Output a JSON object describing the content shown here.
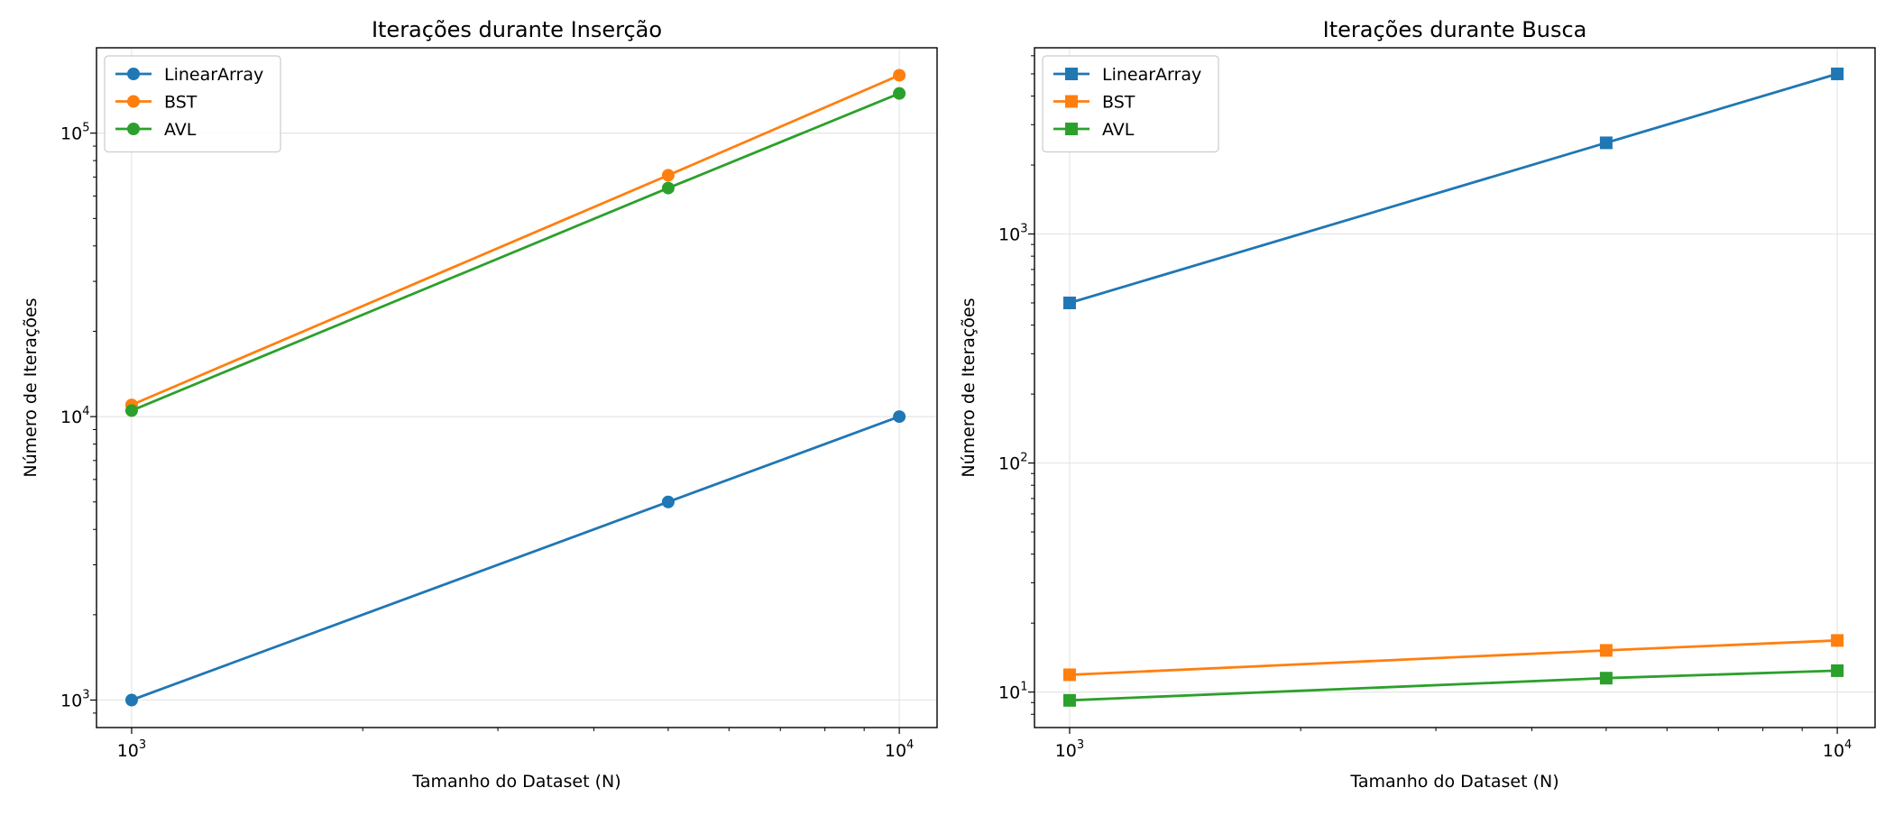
{
  "chart_data": [
    {
      "type": "line",
      "title": "Iterações durante Inserção",
      "xlabel": "Tamanho do Dataset (N)",
      "ylabel": "Número de Iterações",
      "xscale": "log",
      "yscale": "log",
      "xlim": [
        900,
        11200
      ],
      "ylim": [
        800,
        200000
      ],
      "xticks": [
        {
          "value": 1000,
          "base": "10",
          "exp": "3"
        },
        {
          "value": 10000,
          "base": "10",
          "exp": "4"
        }
      ],
      "yticks": [
        {
          "value": 1000,
          "base": "10",
          "exp": "3"
        },
        {
          "value": 10000,
          "base": "10",
          "exp": "4"
        },
        {
          "value": 100000,
          "base": "10",
          "exp": "5"
        }
      ],
      "marker": "circle",
      "grid": true,
      "legend_position": "upper-left",
      "x": [
        1000,
        5000,
        10000
      ],
      "series": [
        {
          "name": "LinearArray",
          "color": "#1f77b4",
          "values": [
            1000,
            5000,
            10000
          ]
        },
        {
          "name": "BST",
          "color": "#ff7f0e",
          "values": [
            11000,
            71000,
            160000
          ]
        },
        {
          "name": "AVL",
          "color": "#2ca02c",
          "values": [
            10500,
            64000,
            138000
          ]
        }
      ]
    },
    {
      "type": "line",
      "title": "Iterações durante Busca",
      "xlabel": "Tamanho do Dataset (N)",
      "ylabel": "Número de Iterações",
      "xscale": "log",
      "yscale": "log",
      "xlim": [
        900,
        11200
      ],
      "ylim": [
        7,
        6500
      ],
      "xticks": [
        {
          "value": 1000,
          "base": "10",
          "exp": "3"
        },
        {
          "value": 10000,
          "base": "10",
          "exp": "4"
        }
      ],
      "yticks": [
        {
          "value": 10,
          "base": "10",
          "exp": "1"
        },
        {
          "value": 100,
          "base": "10",
          "exp": "2"
        },
        {
          "value": 1000,
          "base": "10",
          "exp": "3"
        }
      ],
      "marker": "square",
      "grid": true,
      "legend_position": "upper-left",
      "x": [
        1000,
        5000,
        10000
      ],
      "series": [
        {
          "name": "LinearArray",
          "color": "#1f77b4",
          "values": [
            500,
            2500,
            5000
          ]
        },
        {
          "name": "BST",
          "color": "#ff7f0e",
          "values": [
            11.9,
            15.2,
            16.8
          ]
        },
        {
          "name": "AVL",
          "color": "#2ca02c",
          "values": [
            9.2,
            11.5,
            12.4
          ]
        }
      ]
    }
  ]
}
